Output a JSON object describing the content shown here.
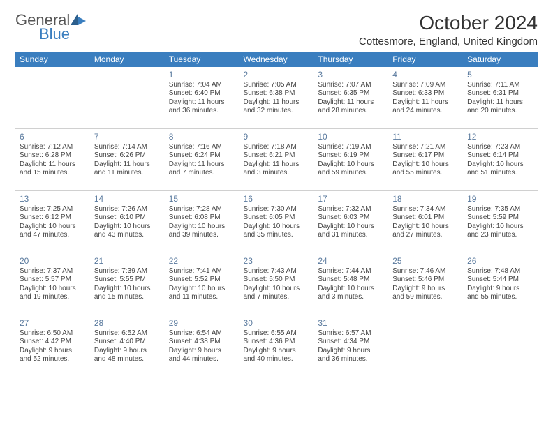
{
  "brand": {
    "general": "General",
    "blue": "Blue"
  },
  "title": {
    "month": "October 2024",
    "location": "Cottesmore, England, United Kingdom"
  },
  "styling": {
    "header_bg": "#3a7ebf",
    "header_text": "#ffffff",
    "row_border": "#d0d0d0",
    "daynum_color": "#5a7a9e",
    "body_text": "#444444",
    "page_bg": "#ffffff",
    "month_fontsize": 28,
    "location_fontsize": 15,
    "th_fontsize": 12,
    "cell_fontsize": 10,
    "columns": 7
  },
  "weekdays": [
    "Sunday",
    "Monday",
    "Tuesday",
    "Wednesday",
    "Thursday",
    "Friday",
    "Saturday"
  ],
  "weeks": [
    [
      null,
      null,
      {
        "n": "1",
        "sunrise": "7:04 AM",
        "sunset": "6:40 PM",
        "day_h": "11",
        "day_m": "36"
      },
      {
        "n": "2",
        "sunrise": "7:05 AM",
        "sunset": "6:38 PM",
        "day_h": "11",
        "day_m": "32"
      },
      {
        "n": "3",
        "sunrise": "7:07 AM",
        "sunset": "6:35 PM",
        "day_h": "11",
        "day_m": "28"
      },
      {
        "n": "4",
        "sunrise": "7:09 AM",
        "sunset": "6:33 PM",
        "day_h": "11",
        "day_m": "24"
      },
      {
        "n": "5",
        "sunrise": "7:11 AM",
        "sunset": "6:31 PM",
        "day_h": "11",
        "day_m": "20"
      }
    ],
    [
      {
        "n": "6",
        "sunrise": "7:12 AM",
        "sunset": "6:28 PM",
        "day_h": "11",
        "day_m": "15"
      },
      {
        "n": "7",
        "sunrise": "7:14 AM",
        "sunset": "6:26 PM",
        "day_h": "11",
        "day_m": "11"
      },
      {
        "n": "8",
        "sunrise": "7:16 AM",
        "sunset": "6:24 PM",
        "day_h": "11",
        "day_m": "7"
      },
      {
        "n": "9",
        "sunrise": "7:18 AM",
        "sunset": "6:21 PM",
        "day_h": "11",
        "day_m": "3"
      },
      {
        "n": "10",
        "sunrise": "7:19 AM",
        "sunset": "6:19 PM",
        "day_h": "10",
        "day_m": "59"
      },
      {
        "n": "11",
        "sunrise": "7:21 AM",
        "sunset": "6:17 PM",
        "day_h": "10",
        "day_m": "55"
      },
      {
        "n": "12",
        "sunrise": "7:23 AM",
        "sunset": "6:14 PM",
        "day_h": "10",
        "day_m": "51"
      }
    ],
    [
      {
        "n": "13",
        "sunrise": "7:25 AM",
        "sunset": "6:12 PM",
        "day_h": "10",
        "day_m": "47"
      },
      {
        "n": "14",
        "sunrise": "7:26 AM",
        "sunset": "6:10 PM",
        "day_h": "10",
        "day_m": "43"
      },
      {
        "n": "15",
        "sunrise": "7:28 AM",
        "sunset": "6:08 PM",
        "day_h": "10",
        "day_m": "39"
      },
      {
        "n": "16",
        "sunrise": "7:30 AM",
        "sunset": "6:05 PM",
        "day_h": "10",
        "day_m": "35"
      },
      {
        "n": "17",
        "sunrise": "7:32 AM",
        "sunset": "6:03 PM",
        "day_h": "10",
        "day_m": "31"
      },
      {
        "n": "18",
        "sunrise": "7:34 AM",
        "sunset": "6:01 PM",
        "day_h": "10",
        "day_m": "27"
      },
      {
        "n": "19",
        "sunrise": "7:35 AM",
        "sunset": "5:59 PM",
        "day_h": "10",
        "day_m": "23"
      }
    ],
    [
      {
        "n": "20",
        "sunrise": "7:37 AM",
        "sunset": "5:57 PM",
        "day_h": "10",
        "day_m": "19"
      },
      {
        "n": "21",
        "sunrise": "7:39 AM",
        "sunset": "5:55 PM",
        "day_h": "10",
        "day_m": "15"
      },
      {
        "n": "22",
        "sunrise": "7:41 AM",
        "sunset": "5:52 PM",
        "day_h": "10",
        "day_m": "11"
      },
      {
        "n": "23",
        "sunrise": "7:43 AM",
        "sunset": "5:50 PM",
        "day_h": "10",
        "day_m": "7"
      },
      {
        "n": "24",
        "sunrise": "7:44 AM",
        "sunset": "5:48 PM",
        "day_h": "10",
        "day_m": "3"
      },
      {
        "n": "25",
        "sunrise": "7:46 AM",
        "sunset": "5:46 PM",
        "day_h": "9",
        "day_m": "59"
      },
      {
        "n": "26",
        "sunrise": "7:48 AM",
        "sunset": "5:44 PM",
        "day_h": "9",
        "day_m": "55"
      }
    ],
    [
      {
        "n": "27",
        "sunrise": "6:50 AM",
        "sunset": "4:42 PM",
        "day_h": "9",
        "day_m": "52"
      },
      {
        "n": "28",
        "sunrise": "6:52 AM",
        "sunset": "4:40 PM",
        "day_h": "9",
        "day_m": "48"
      },
      {
        "n": "29",
        "sunrise": "6:54 AM",
        "sunset": "4:38 PM",
        "day_h": "9",
        "day_m": "44"
      },
      {
        "n": "30",
        "sunrise": "6:55 AM",
        "sunset": "4:36 PM",
        "day_h": "9",
        "day_m": "40"
      },
      {
        "n": "31",
        "sunrise": "6:57 AM",
        "sunset": "4:34 PM",
        "day_h": "9",
        "day_m": "36"
      },
      null,
      null
    ]
  ],
  "labels": {
    "sunrise": "Sunrise:",
    "sunset": "Sunset:",
    "daylight": "Daylight:",
    "hours": "hours",
    "and": "and",
    "minutes": "minutes."
  }
}
